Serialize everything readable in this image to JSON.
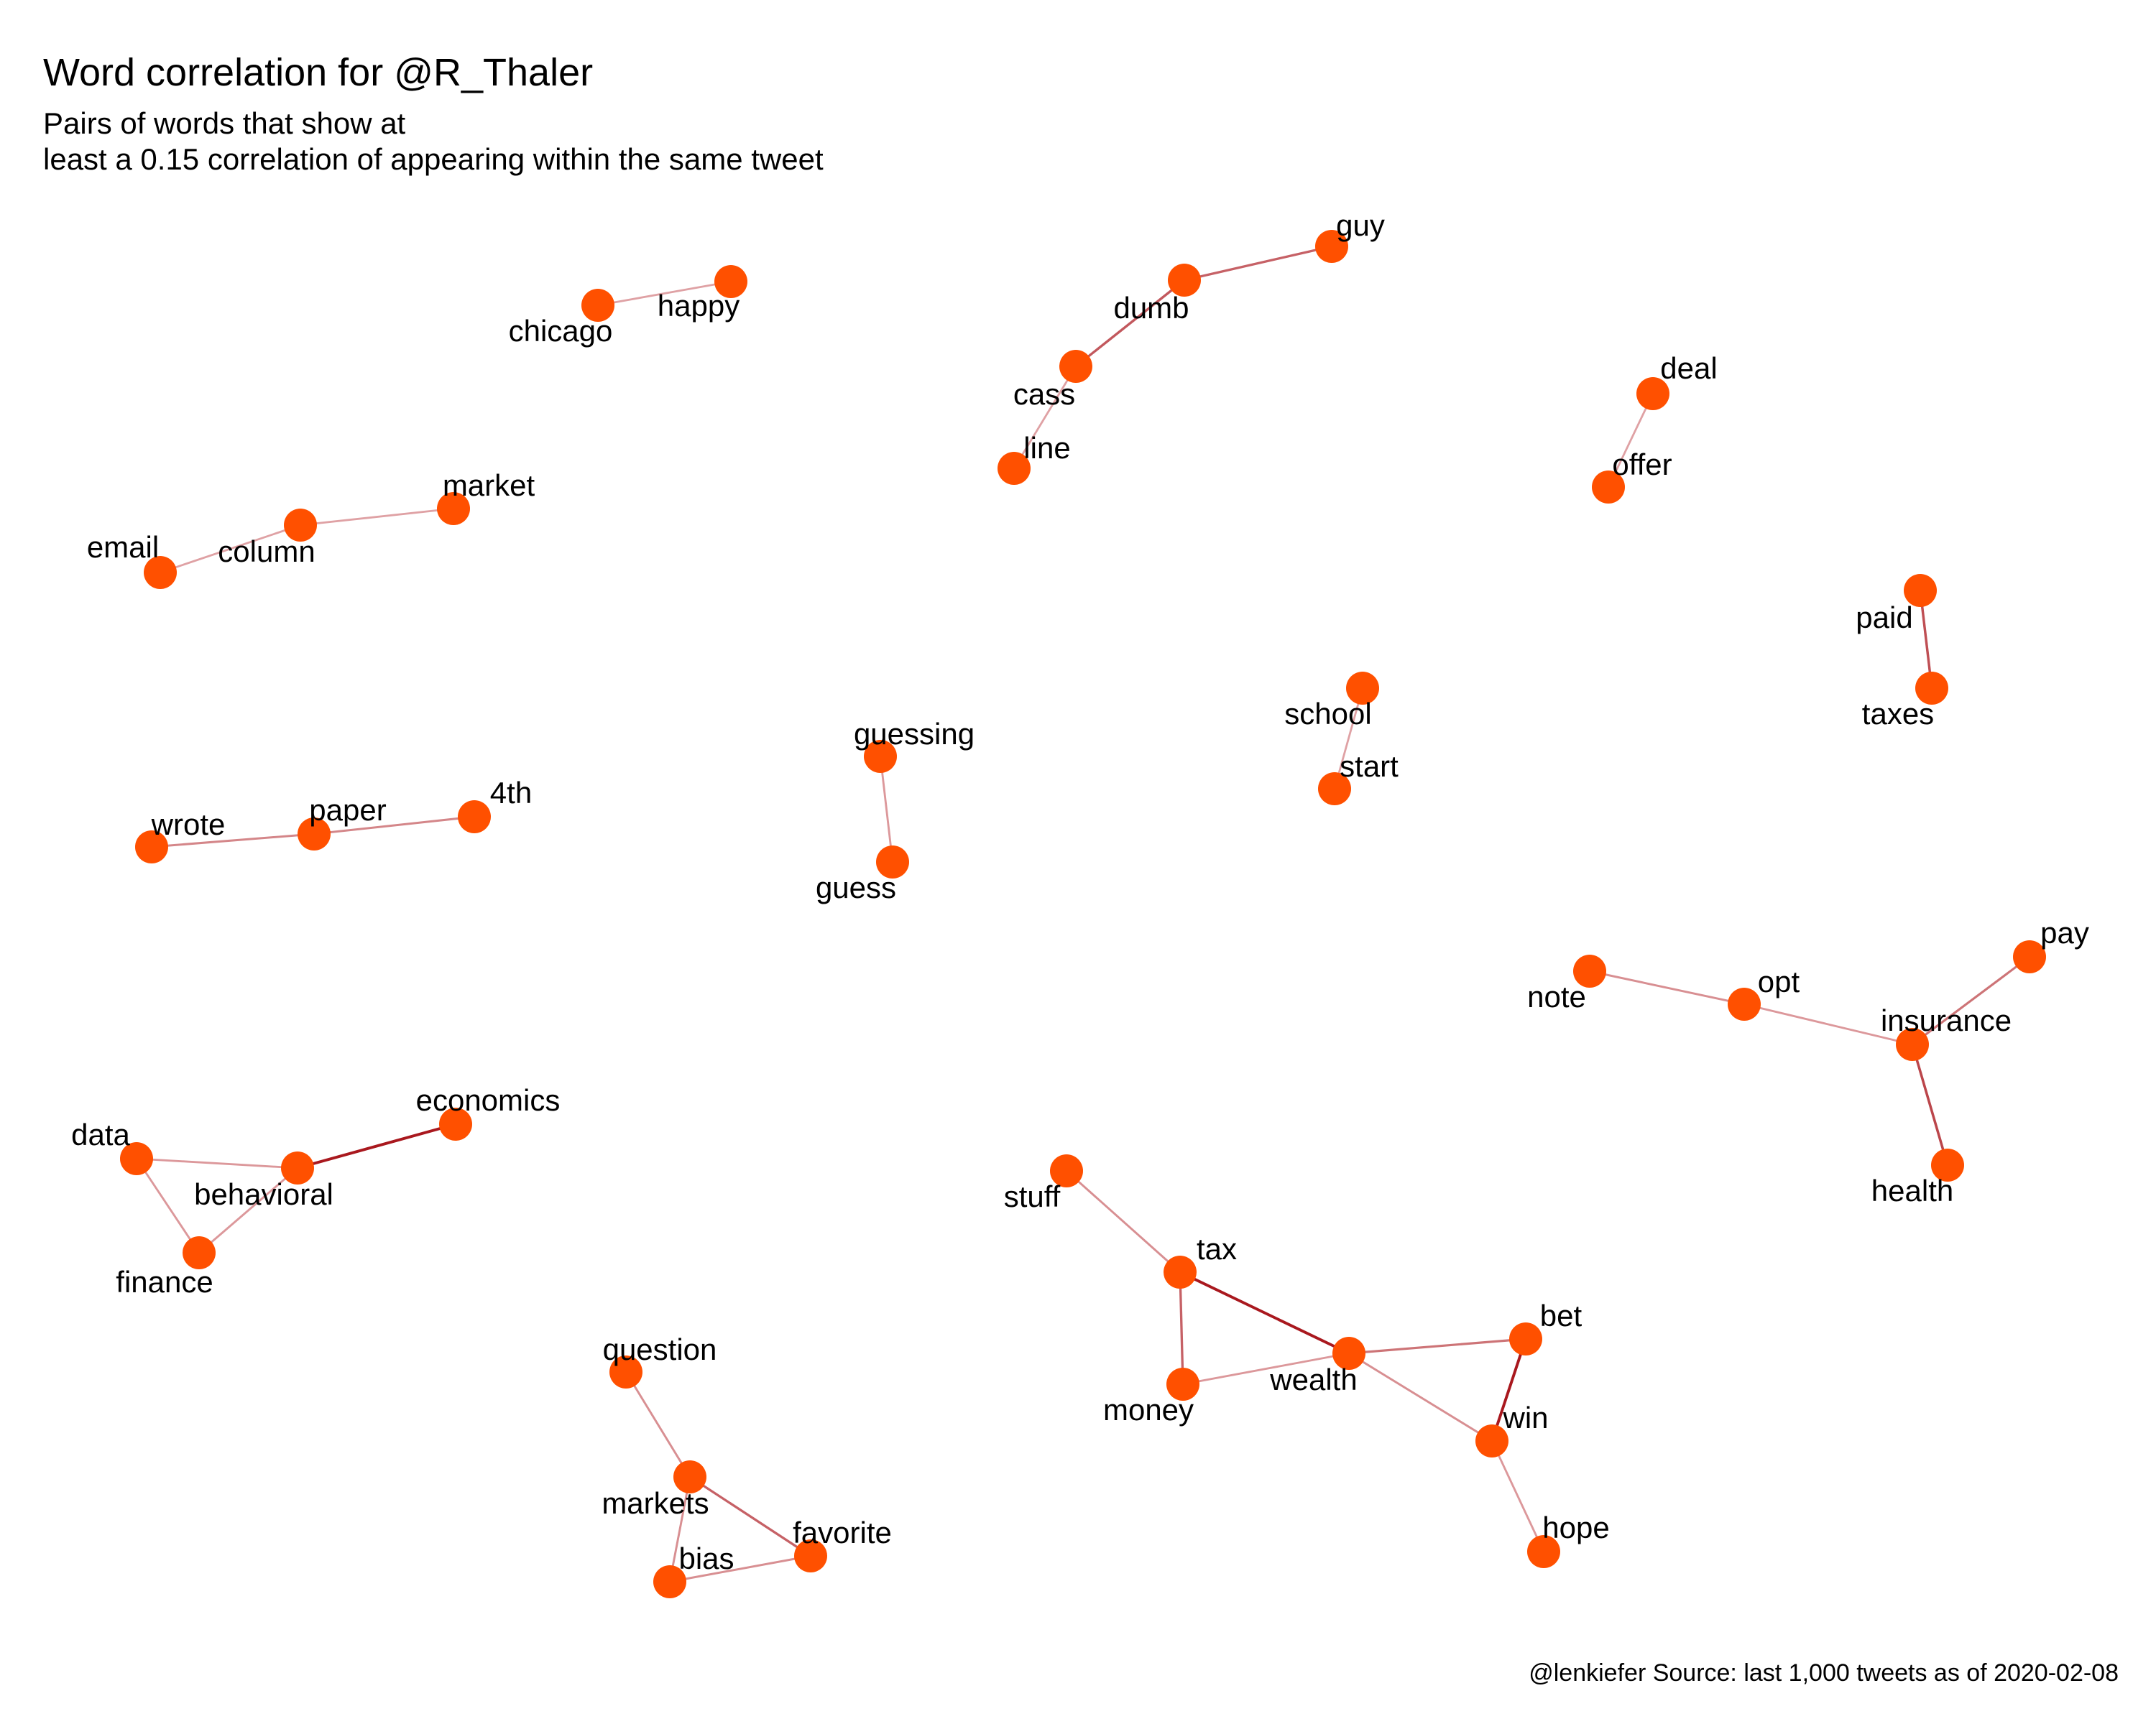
{
  "title": "Word correlation for @R_Thaler",
  "subtitle_line1": "Pairs of words  that show at",
  "subtitle_line2": "least a 0.15 correlation of appearing within the same tweet",
  "caption": "@lenkiefer Source: last 1,000 tweets as of 2020-02-08",
  "colors": {
    "node": "#FF5000",
    "edge_weak": "#EEC6C8",
    "edge_strong": "#A50F15"
  },
  "nodes": [
    {
      "id": "chicago",
      "label": "chicago"
    },
    {
      "id": "happy",
      "label": "happy"
    },
    {
      "id": "guy",
      "label": "guy"
    },
    {
      "id": "dumb",
      "label": "dumb"
    },
    {
      "id": "cass",
      "label": "cass"
    },
    {
      "id": "line",
      "label": "line"
    },
    {
      "id": "deal",
      "label": "deal"
    },
    {
      "id": "offer",
      "label": "offer"
    },
    {
      "id": "market",
      "label": "market"
    },
    {
      "id": "column",
      "label": "column"
    },
    {
      "id": "email",
      "label": "email"
    },
    {
      "id": "paid",
      "label": "paid"
    },
    {
      "id": "taxes",
      "label": "taxes"
    },
    {
      "id": "school",
      "label": "school"
    },
    {
      "id": "start",
      "label": "start"
    },
    {
      "id": "guessing",
      "label": "guessing"
    },
    {
      "id": "guess",
      "label": "guess"
    },
    {
      "id": "wrote",
      "label": "wrote"
    },
    {
      "id": "paper",
      "label": "paper"
    },
    {
      "id": "4th",
      "label": "4th"
    },
    {
      "id": "note",
      "label": "note"
    },
    {
      "id": "opt",
      "label": "opt"
    },
    {
      "id": "insurance",
      "label": "insurance"
    },
    {
      "id": "pay",
      "label": "pay"
    },
    {
      "id": "health",
      "label": "health"
    },
    {
      "id": "economics",
      "label": "economics"
    },
    {
      "id": "data",
      "label": "data"
    },
    {
      "id": "behavioral",
      "label": "behavioral"
    },
    {
      "id": "finance",
      "label": "finance"
    },
    {
      "id": "stuff",
      "label": "stuff"
    },
    {
      "id": "tax",
      "label": "tax"
    },
    {
      "id": "money",
      "label": "money"
    },
    {
      "id": "wealth",
      "label": "wealth"
    },
    {
      "id": "bet",
      "label": "bet"
    },
    {
      "id": "win",
      "label": "win"
    },
    {
      "id": "hope",
      "label": "hope"
    },
    {
      "id": "question",
      "label": "question"
    },
    {
      "id": "markets",
      "label": "markets"
    },
    {
      "id": "favorite",
      "label": "favorite"
    },
    {
      "id": "bias",
      "label": "bias"
    }
  ],
  "edges": [
    {
      "from": "chicago",
      "to": "happy",
      "strength": 0.2
    },
    {
      "from": "guy",
      "to": "dumb",
      "strength": 0.55
    },
    {
      "from": "dumb",
      "to": "cass",
      "strength": 0.6
    },
    {
      "from": "cass",
      "to": "line",
      "strength": 0.2
    },
    {
      "from": "deal",
      "to": "offer",
      "strength": 0.2
    },
    {
      "from": "market",
      "to": "column",
      "strength": 0.2
    },
    {
      "from": "column",
      "to": "email",
      "strength": 0.2
    },
    {
      "from": "paid",
      "to": "taxes",
      "strength": 0.65
    },
    {
      "from": "school",
      "to": "start",
      "strength": 0.2
    },
    {
      "from": "guessing",
      "to": "guess",
      "strength": 0.25
    },
    {
      "from": "wrote",
      "to": "paper",
      "strength": 0.35
    },
    {
      "from": "paper",
      "to": "4th",
      "strength": 0.35
    },
    {
      "from": "note",
      "to": "opt",
      "strength": 0.3
    },
    {
      "from": "opt",
      "to": "insurance",
      "strength": 0.25
    },
    {
      "from": "insurance",
      "to": "pay",
      "strength": 0.45
    },
    {
      "from": "insurance",
      "to": "health",
      "strength": 0.7
    },
    {
      "from": "behavioral",
      "to": "economics",
      "strength": 0.95
    },
    {
      "from": "data",
      "to": "behavioral",
      "strength": 0.25
    },
    {
      "from": "data",
      "to": "finance",
      "strength": 0.25
    },
    {
      "from": "behavioral",
      "to": "finance",
      "strength": 0.25
    },
    {
      "from": "stuff",
      "to": "tax",
      "strength": 0.3
    },
    {
      "from": "tax",
      "to": "wealth",
      "strength": 0.95
    },
    {
      "from": "tax",
      "to": "money",
      "strength": 0.55
    },
    {
      "from": "money",
      "to": "wealth",
      "strength": 0.25
    },
    {
      "from": "wealth",
      "to": "bet",
      "strength": 0.45
    },
    {
      "from": "wealth",
      "to": "win",
      "strength": 0.3
    },
    {
      "from": "bet",
      "to": "win",
      "strength": 0.95
    },
    {
      "from": "win",
      "to": "hope",
      "strength": 0.25
    },
    {
      "from": "question",
      "to": "markets",
      "strength": 0.3
    },
    {
      "from": "markets",
      "to": "favorite",
      "strength": 0.55
    },
    {
      "from": "markets",
      "to": "bias",
      "strength": 0.3
    },
    {
      "from": "bias",
      "to": "favorite",
      "strength": 0.3
    }
  ]
}
